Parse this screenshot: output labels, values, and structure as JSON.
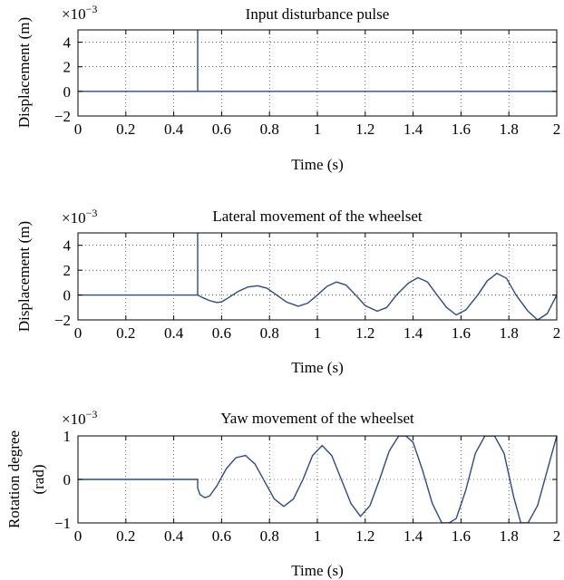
{
  "chart_data": [
    {
      "type": "line",
      "title": "Input disturbance pulse",
      "xlabel": "Time (s)",
      "ylabel": [
        "Displacement (m)"
      ],
      "scale_exponent_label": "×10",
      "scale_exponent": "−3",
      "xlim": [
        0,
        2
      ],
      "ylim": [
        -2,
        5
      ],
      "xticks": [
        0,
        0.2,
        0.4,
        0.6,
        0.8,
        1,
        1.2,
        1.4,
        1.6,
        1.8,
        2
      ],
      "xtick_labels": [
        "0",
        "0.2",
        "0.4",
        "0.6",
        "0.8",
        "1",
        "1.2",
        "1.4",
        "1.6",
        "1.8",
        "2"
      ],
      "yticks": [
        -2,
        0,
        2,
        4
      ],
      "ytick_labels": [
        "−2",
        "0",
        "2",
        "4"
      ],
      "grid": "dotted",
      "line_color": "#2a4a8a",
      "series": [
        {
          "x": [
            0,
            0.5,
            0.5,
            0.5,
            0.5,
            2
          ],
          "y": [
            0,
            0,
            5,
            0,
            0,
            0
          ]
        }
      ]
    },
    {
      "type": "line",
      "title": "Lateral movement of the wheelset",
      "xlabel": "Time (s)",
      "ylabel": [
        "Displacement (m)"
      ],
      "scale_exponent_label": "×10",
      "scale_exponent": "−3",
      "xlim": [
        0,
        2
      ],
      "ylim": [
        -2,
        5
      ],
      "xticks": [
        0,
        0.2,
        0.4,
        0.6,
        0.8,
        1,
        1.2,
        1.4,
        1.6,
        1.8,
        2
      ],
      "xtick_labels": [
        "0",
        "0.2",
        "0.4",
        "0.6",
        "0.8",
        "1",
        "1.2",
        "1.4",
        "1.6",
        "1.8",
        "2"
      ],
      "yticks": [
        -2,
        0,
        2,
        4
      ],
      "ytick_labels": [
        "−2",
        "0",
        "2",
        "4"
      ],
      "grid": "dotted",
      "line_color": "#2a4a8a",
      "series": [
        {
          "x": [
            0,
            0.5,
            0.5,
            0.5,
            0.5,
            0.52,
            0.55,
            0.58,
            0.6,
            0.63,
            0.67,
            0.71,
            0.75,
            0.79,
            0.83,
            0.87,
            0.92,
            0.96,
            1.0,
            1.04,
            1.08,
            1.12,
            1.16,
            1.2,
            1.25,
            1.29,
            1.33,
            1.38,
            1.42,
            1.46,
            1.5,
            1.54,
            1.58,
            1.62,
            1.67,
            1.71,
            1.75,
            1.79,
            1.83,
            1.88,
            1.92,
            1.96,
            2.0
          ],
          "y": [
            0,
            0,
            5,
            0,
            0,
            -0.2,
            -0.45,
            -0.6,
            -0.55,
            -0.2,
            0.3,
            0.65,
            0.75,
            0.55,
            0.0,
            -0.55,
            -0.9,
            -0.65,
            0.0,
            0.7,
            1.05,
            0.8,
            0.0,
            -0.85,
            -1.3,
            -1.0,
            0.0,
            0.95,
            1.4,
            1.05,
            0.0,
            -1.0,
            -1.6,
            -1.2,
            0.0,
            1.15,
            1.75,
            1.35,
            0.0,
            -1.3,
            -2.0,
            -1.5,
            0.0
          ]
        }
      ]
    },
    {
      "type": "line",
      "title": "Yaw movement of the wheelset",
      "xlabel": "Time (s)",
      "ylabel": [
        "Rotation degree",
        "(rad)"
      ],
      "scale_exponent_label": "×10",
      "scale_exponent": "−3",
      "xlim": [
        0,
        2
      ],
      "ylim": [
        -1,
        1
      ],
      "xticks": [
        0,
        0.2,
        0.4,
        0.6,
        0.8,
        1,
        1.2,
        1.4,
        1.6,
        1.8,
        2
      ],
      "xtick_labels": [
        "0",
        "0.2",
        "0.4",
        "0.6",
        "0.8",
        "1",
        "1.2",
        "1.4",
        "1.6",
        "1.8",
        "2"
      ],
      "yticks": [
        -1,
        0,
        1
      ],
      "ytick_labels": [
        "−1",
        "0",
        "1"
      ],
      "grid": "dotted",
      "line_color": "#2a4a8a",
      "series": [
        {
          "x": [
            0,
            0.5,
            0.5,
            0.51,
            0.53,
            0.55,
            0.58,
            0.62,
            0.66,
            0.7,
            0.74,
            0.78,
            0.82,
            0.86,
            0.9,
            0.94,
            0.98,
            1.02,
            1.06,
            1.1,
            1.14,
            1.18,
            1.22,
            1.26,
            1.3,
            1.34,
            1.37,
            1.4,
            1.44,
            1.48,
            1.52,
            1.55,
            1.58,
            1.62,
            1.66,
            1.7,
            1.74,
            1.78,
            1.82,
            1.85,
            1.88,
            1.92,
            1.96,
            2.0
          ],
          "y": [
            0,
            0,
            -0.2,
            -0.35,
            -0.42,
            -0.38,
            -0.15,
            0.25,
            0.5,
            0.55,
            0.35,
            -0.05,
            -0.45,
            -0.62,
            -0.45,
            0.0,
            0.55,
            0.78,
            0.55,
            0.0,
            -0.55,
            -0.85,
            -0.6,
            0.0,
            0.65,
            1.0,
            1.0,
            0.85,
            0.2,
            -0.55,
            -1.0,
            -1.0,
            -0.9,
            -0.25,
            0.6,
            1.0,
            1.0,
            0.6,
            -0.4,
            -1.0,
            -1.0,
            -0.6,
            0.2,
            1.0
          ]
        }
      ]
    }
  ]
}
